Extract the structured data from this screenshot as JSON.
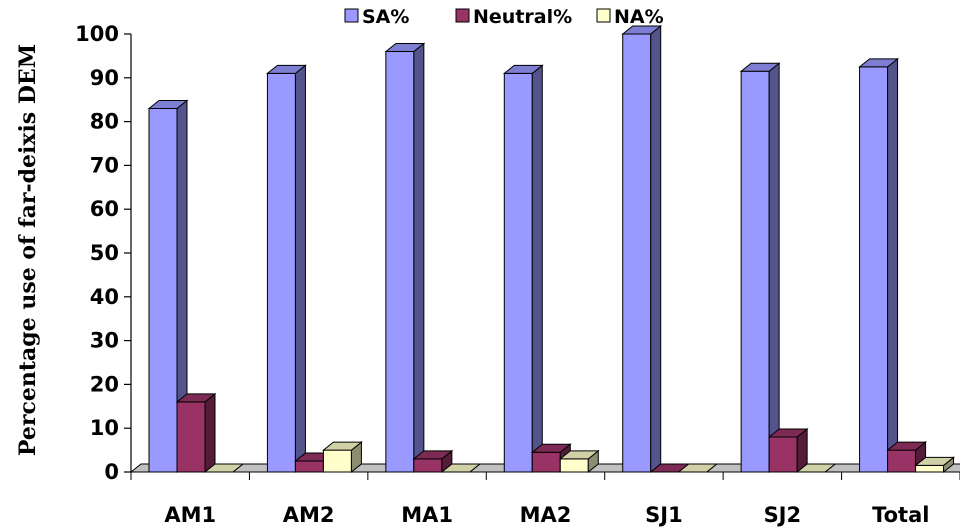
{
  "chart_data": {
    "type": "bar",
    "title": "",
    "xlabel": "",
    "ylabel": "Percentage use of far-deixis DEM",
    "ylim": [
      0,
      100
    ],
    "yticks": [
      0,
      10,
      20,
      30,
      40,
      50,
      60,
      70,
      80,
      90,
      100
    ],
    "categories": [
      "AM1",
      "AM2",
      "MA1",
      "MA2",
      "SJ1",
      "SJ2",
      "Total"
    ],
    "series": [
      {
        "name": "SA%",
        "color": "#9999ff",
        "values": [
          83,
          91,
          96,
          91,
          100,
          91.5,
          92.5
        ]
      },
      {
        "name": "Neutral%",
        "color": "#993366",
        "values": [
          16,
          2.5,
          3,
          4.5,
          0,
          8,
          5
        ]
      },
      {
        "name": "NA%",
        "color": "#ffffcc",
        "values": [
          0,
          5,
          0,
          3,
          0,
          0,
          1.5
        ]
      }
    ],
    "legend_position": "top",
    "style": "3d-clustered-column",
    "grid": false
  }
}
